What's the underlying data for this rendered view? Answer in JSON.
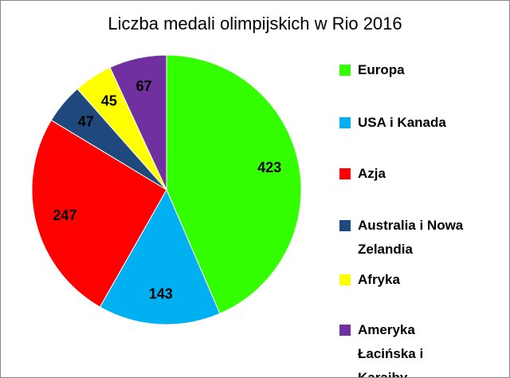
{
  "chart_data": {
    "type": "pie",
    "title": "Liczba medali olimpijskich w Rio 2016",
    "categories": [
      "Europa",
      "USA i Kanada",
      "Azja",
      "Australia i Nowa Zelandia",
      "Afryka",
      "Ameryka Łacińska i Karaiby"
    ],
    "values": [
      423,
      143,
      247,
      47,
      45,
      67
    ],
    "colors": [
      "#33ff00",
      "#00b0f0",
      "#ff0000",
      "#1f497d",
      "#ffff00",
      "#7030a0"
    ],
    "legend": "right"
  }
}
